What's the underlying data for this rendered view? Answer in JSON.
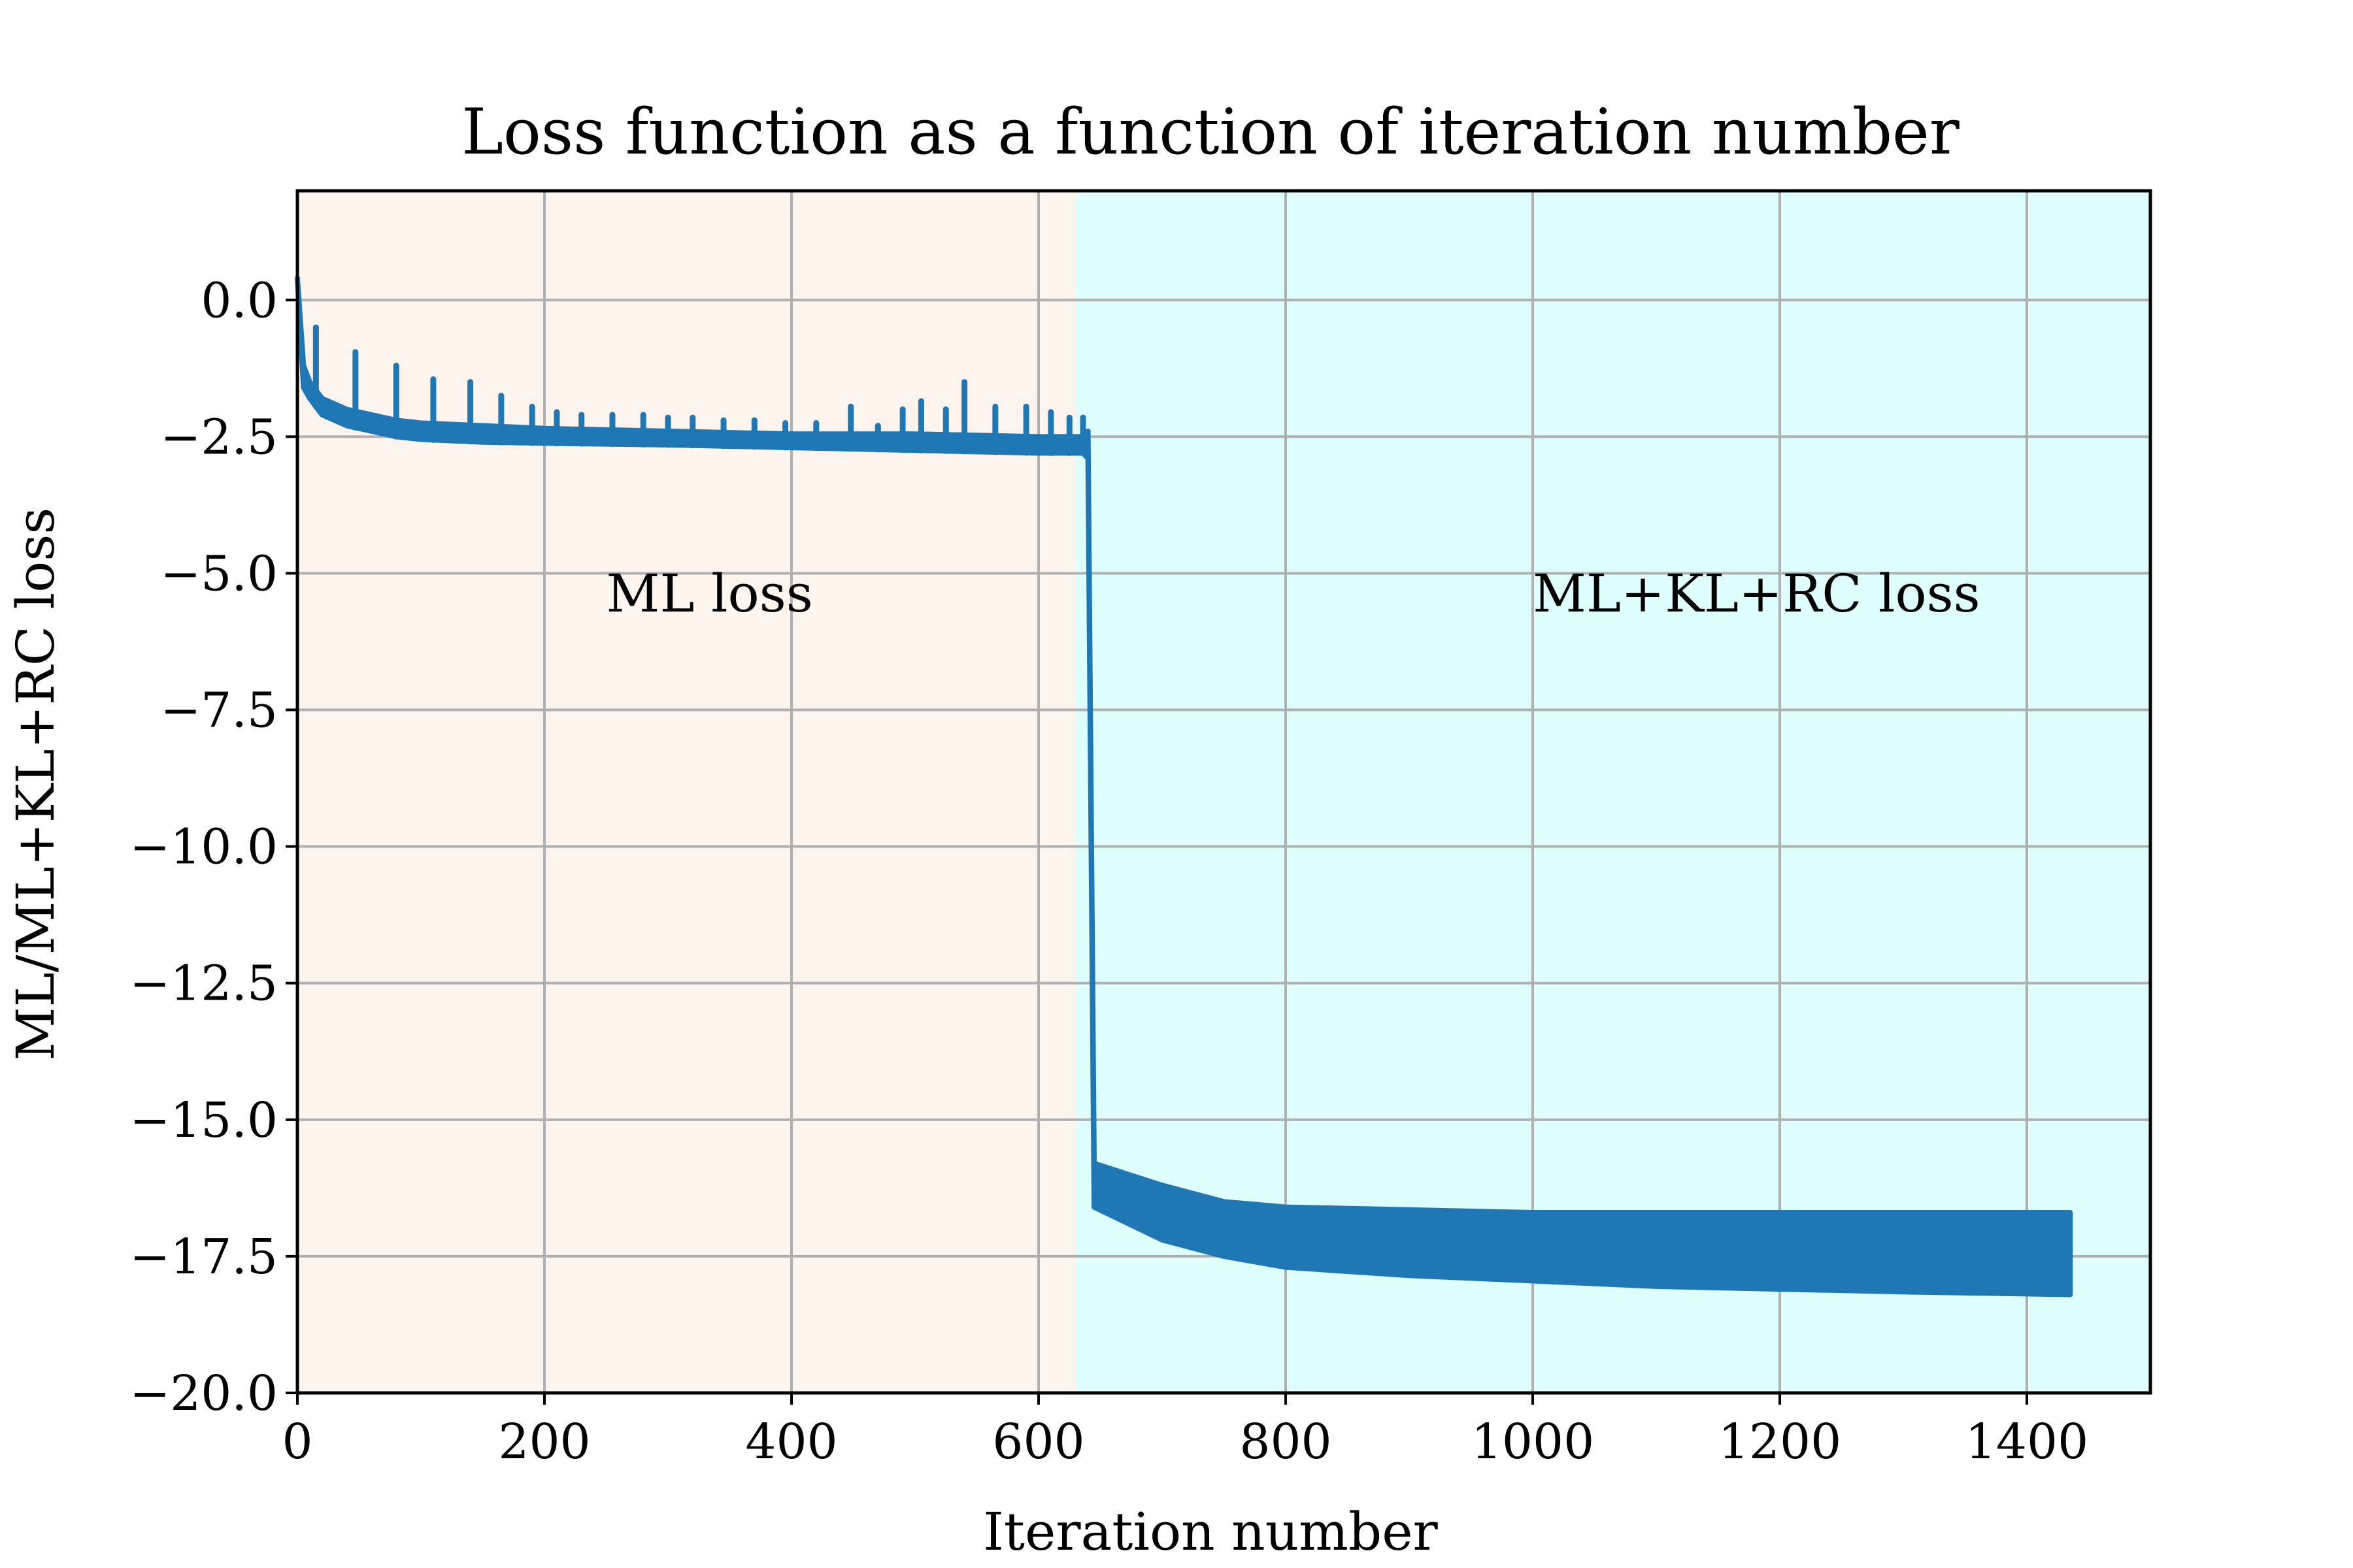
{
  "chart_data": {
    "type": "line",
    "title": "Loss function as a function of iteration number",
    "xlabel": "Iteration number",
    "ylabel": "ML/ML+KL+RC loss",
    "xlim": [
      0,
      1500
    ],
    "ylim": [
      -20,
      2
    ],
    "xticks": [
      0,
      200,
      400,
      600,
      800,
      1000,
      1200,
      1400
    ],
    "xtick_labels": [
      "0",
      "200",
      "400",
      "600",
      "800",
      "1000",
      "1200",
      "1400"
    ],
    "yticks": [
      -20,
      -17.5,
      -15,
      -12.5,
      -10,
      -7.5,
      -5,
      -2.5,
      0
    ],
    "ytick_labels": [
      "−20.0",
      "−17.5",
      "−15.0",
      "−12.5",
      "−10.0",
      "−7.5",
      "−5.0",
      "−2.5",
      "0.0"
    ],
    "grid": true,
    "regions": [
      {
        "label": "ML loss",
        "x_start": 0,
        "x_end": 630,
        "color": "#fef4ee",
        "label_x": 250,
        "label_y": -5.7
      },
      {
        "label": "ML+KL+RC loss",
        "x_start": 630,
        "x_end": 1500,
        "color": "#dffefe",
        "label_x": 1000,
        "label_y": -5.7
      }
    ],
    "series": [
      {
        "color": "#1f77b4",
        "envelope_upper": [
          [
            0,
            0.4
          ],
          [
            5,
            -1.2
          ],
          [
            10,
            -1.5
          ],
          [
            20,
            -1.8
          ],
          [
            40,
            -2.0
          ],
          [
            60,
            -2.1
          ],
          [
            80,
            -2.2
          ],
          [
            100,
            -2.25
          ],
          [
            150,
            -2.3
          ],
          [
            200,
            -2.35
          ],
          [
            300,
            -2.4
          ],
          [
            400,
            -2.45
          ],
          [
            500,
            -2.45
          ],
          [
            600,
            -2.5
          ],
          [
            636,
            -2.5
          ],
          [
            640,
            -2.4
          ],
          [
            645,
            -15.8
          ],
          [
            700,
            -16.2
          ],
          [
            750,
            -16.5
          ],
          [
            800,
            -16.6
          ],
          [
            900,
            -16.65
          ],
          [
            1000,
            -16.7
          ],
          [
            1100,
            -16.7
          ],
          [
            1200,
            -16.7
          ],
          [
            1300,
            -16.7
          ],
          [
            1435,
            -16.7
          ]
        ],
        "envelope_lower": [
          [
            0,
            0.4
          ],
          [
            5,
            -1.6
          ],
          [
            10,
            -1.8
          ],
          [
            20,
            -2.1
          ],
          [
            40,
            -2.3
          ],
          [
            60,
            -2.4
          ],
          [
            80,
            -2.5
          ],
          [
            100,
            -2.55
          ],
          [
            150,
            -2.6
          ],
          [
            200,
            -2.62
          ],
          [
            300,
            -2.65
          ],
          [
            400,
            -2.7
          ],
          [
            500,
            -2.75
          ],
          [
            600,
            -2.8
          ],
          [
            636,
            -2.8
          ],
          [
            640,
            -2.9
          ],
          [
            645,
            -16.6
          ],
          [
            700,
            -17.2
          ],
          [
            750,
            -17.5
          ],
          [
            800,
            -17.7
          ],
          [
            900,
            -17.85
          ],
          [
            1000,
            -17.95
          ],
          [
            1100,
            -18.05
          ],
          [
            1200,
            -18.1
          ],
          [
            1300,
            -18.15
          ],
          [
            1435,
            -18.2
          ]
        ],
        "spikes": [
          [
            15,
            -0.5
          ],
          [
            47,
            -0.95
          ],
          [
            80,
            -1.2
          ],
          [
            110,
            -1.45
          ],
          [
            140,
            -1.5
          ],
          [
            165,
            -1.75
          ],
          [
            190,
            -1.95
          ],
          [
            210,
            -2.05
          ],
          [
            230,
            -2.1
          ],
          [
            255,
            -2.1
          ],
          [
            280,
            -2.1
          ],
          [
            300,
            -2.15
          ],
          [
            320,
            -2.15
          ],
          [
            345,
            -2.2
          ],
          [
            370,
            -2.2
          ],
          [
            395,
            -2.25
          ],
          [
            420,
            -2.25
          ],
          [
            448,
            -1.95
          ],
          [
            470,
            -2.3
          ],
          [
            490,
            -2.0
          ],
          [
            505,
            -1.85
          ],
          [
            525,
            -2.0
          ],
          [
            540,
            -1.5
          ],
          [
            565,
            -1.95
          ],
          [
            590,
            -1.95
          ],
          [
            610,
            -2.05
          ],
          [
            625,
            -2.15
          ],
          [
            636,
            -2.15
          ]
        ]
      }
    ]
  }
}
